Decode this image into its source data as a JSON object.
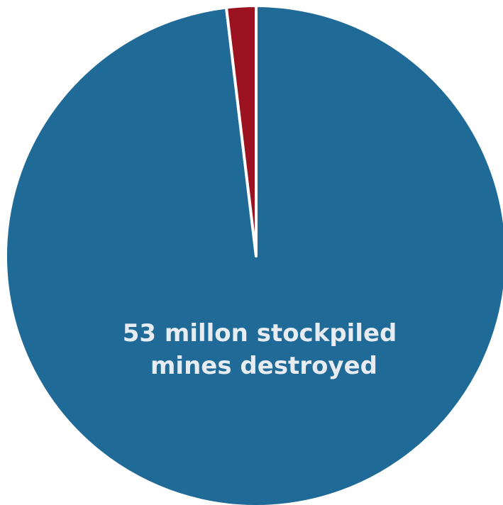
{
  "chart_data": {
    "type": "pie",
    "slices": [
      {
        "label_lines": [
          "53 millon stockpiled",
          "mines destroyed"
        ],
        "value": 98.1,
        "color": "#1f6a96"
      },
      {
        "label_lines": [],
        "value": 1.9,
        "color": "#9b1221"
      }
    ],
    "start_angle_deg": 0,
    "direction": "clockwise",
    "slice_border_color": "#ffffff"
  }
}
